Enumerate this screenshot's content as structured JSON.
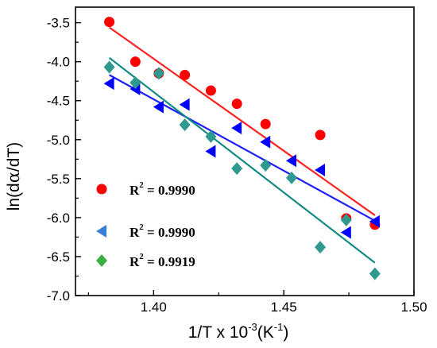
{
  "chart_data": {
    "type": "scatter",
    "xlabel": "1/T x 10",
    "xlabel_exp": "-3",
    "xlabel_unit": "(K",
    "xlabel_unit_exp": "-1",
    "xlabel_close": ")",
    "ylabel_prefix": "ln(d",
    "ylabel_alpha": "α",
    "ylabel_suffix": "/dT)",
    "xlim": [
      1.37,
      1.5
    ],
    "ylim": [
      -7.0,
      -3.3
    ],
    "xticks": [
      1.4,
      1.45,
      1.5
    ],
    "xtick_labels": [
      "1.40",
      "1.45",
      "1.50"
    ],
    "yticks": [
      -7.0,
      -6.5,
      -6.0,
      -5.5,
      -5.0,
      -4.5,
      -4.0,
      -3.5
    ],
    "ytick_labels": [
      "-7.0",
      "-6.5",
      "-6.0",
      "-5.5",
      "-5.0",
      "-4.5",
      "-4.0",
      "-3.5"
    ],
    "legend_position": "bottom-left",
    "series": [
      {
        "marker": "circle",
        "color": "#ff0000",
        "line_color": "#ff2020",
        "legend_r": "R",
        "legend_sup": "2",
        "legend_value": " = 0.9990",
        "x": [
          1.383,
          1.393,
          1.402,
          1.412,
          1.422,
          1.432,
          1.443,
          1.464,
          1.474,
          1.485
        ],
        "y": [
          -3.49,
          -4.0,
          -4.15,
          -4.17,
          -4.37,
          -4.54,
          -4.8,
          -4.94,
          -6.01,
          -6.09
        ],
        "fit": [
          [
            1.383,
            -3.56
          ],
          [
            1.485,
            -5.97
          ]
        ]
      },
      {
        "marker": "triangle-left",
        "color": "#0000ff",
        "line_color": "#1e1eff",
        "legend_r": "R",
        "legend_sup": "2",
        "legend_value": " = 0.9990",
        "x": [
          1.383,
          1.393,
          1.402,
          1.412,
          1.422,
          1.432,
          1.443,
          1.453,
          1.464,
          1.474,
          1.485
        ],
        "y": [
          -4.28,
          -4.35,
          -4.58,
          -4.55,
          -5.15,
          -4.85,
          -5.03,
          -5.27,
          -5.39,
          -6.19,
          -6.05
        ],
        "fit": [
          [
            1.383,
            -4.17
          ],
          [
            1.485,
            -6.04
          ]
        ]
      },
      {
        "marker": "diamond",
        "color": "#2e9a8f",
        "line_color": "#138a84",
        "legend_r": "R",
        "legend_sup": "2",
        "legend_value": " = 0.9919",
        "x": [
          1.383,
          1.393,
          1.402,
          1.412,
          1.422,
          1.432,
          1.443,
          1.453,
          1.464,
          1.474,
          1.485
        ],
        "y": [
          -4.07,
          -4.27,
          -4.15,
          -4.81,
          -4.96,
          -5.37,
          -5.33,
          -5.49,
          -6.38,
          -6.03,
          -6.72
        ],
        "fit": [
          [
            1.383,
            -3.95
          ],
          [
            1.485,
            -6.58
          ]
        ]
      }
    ]
  }
}
